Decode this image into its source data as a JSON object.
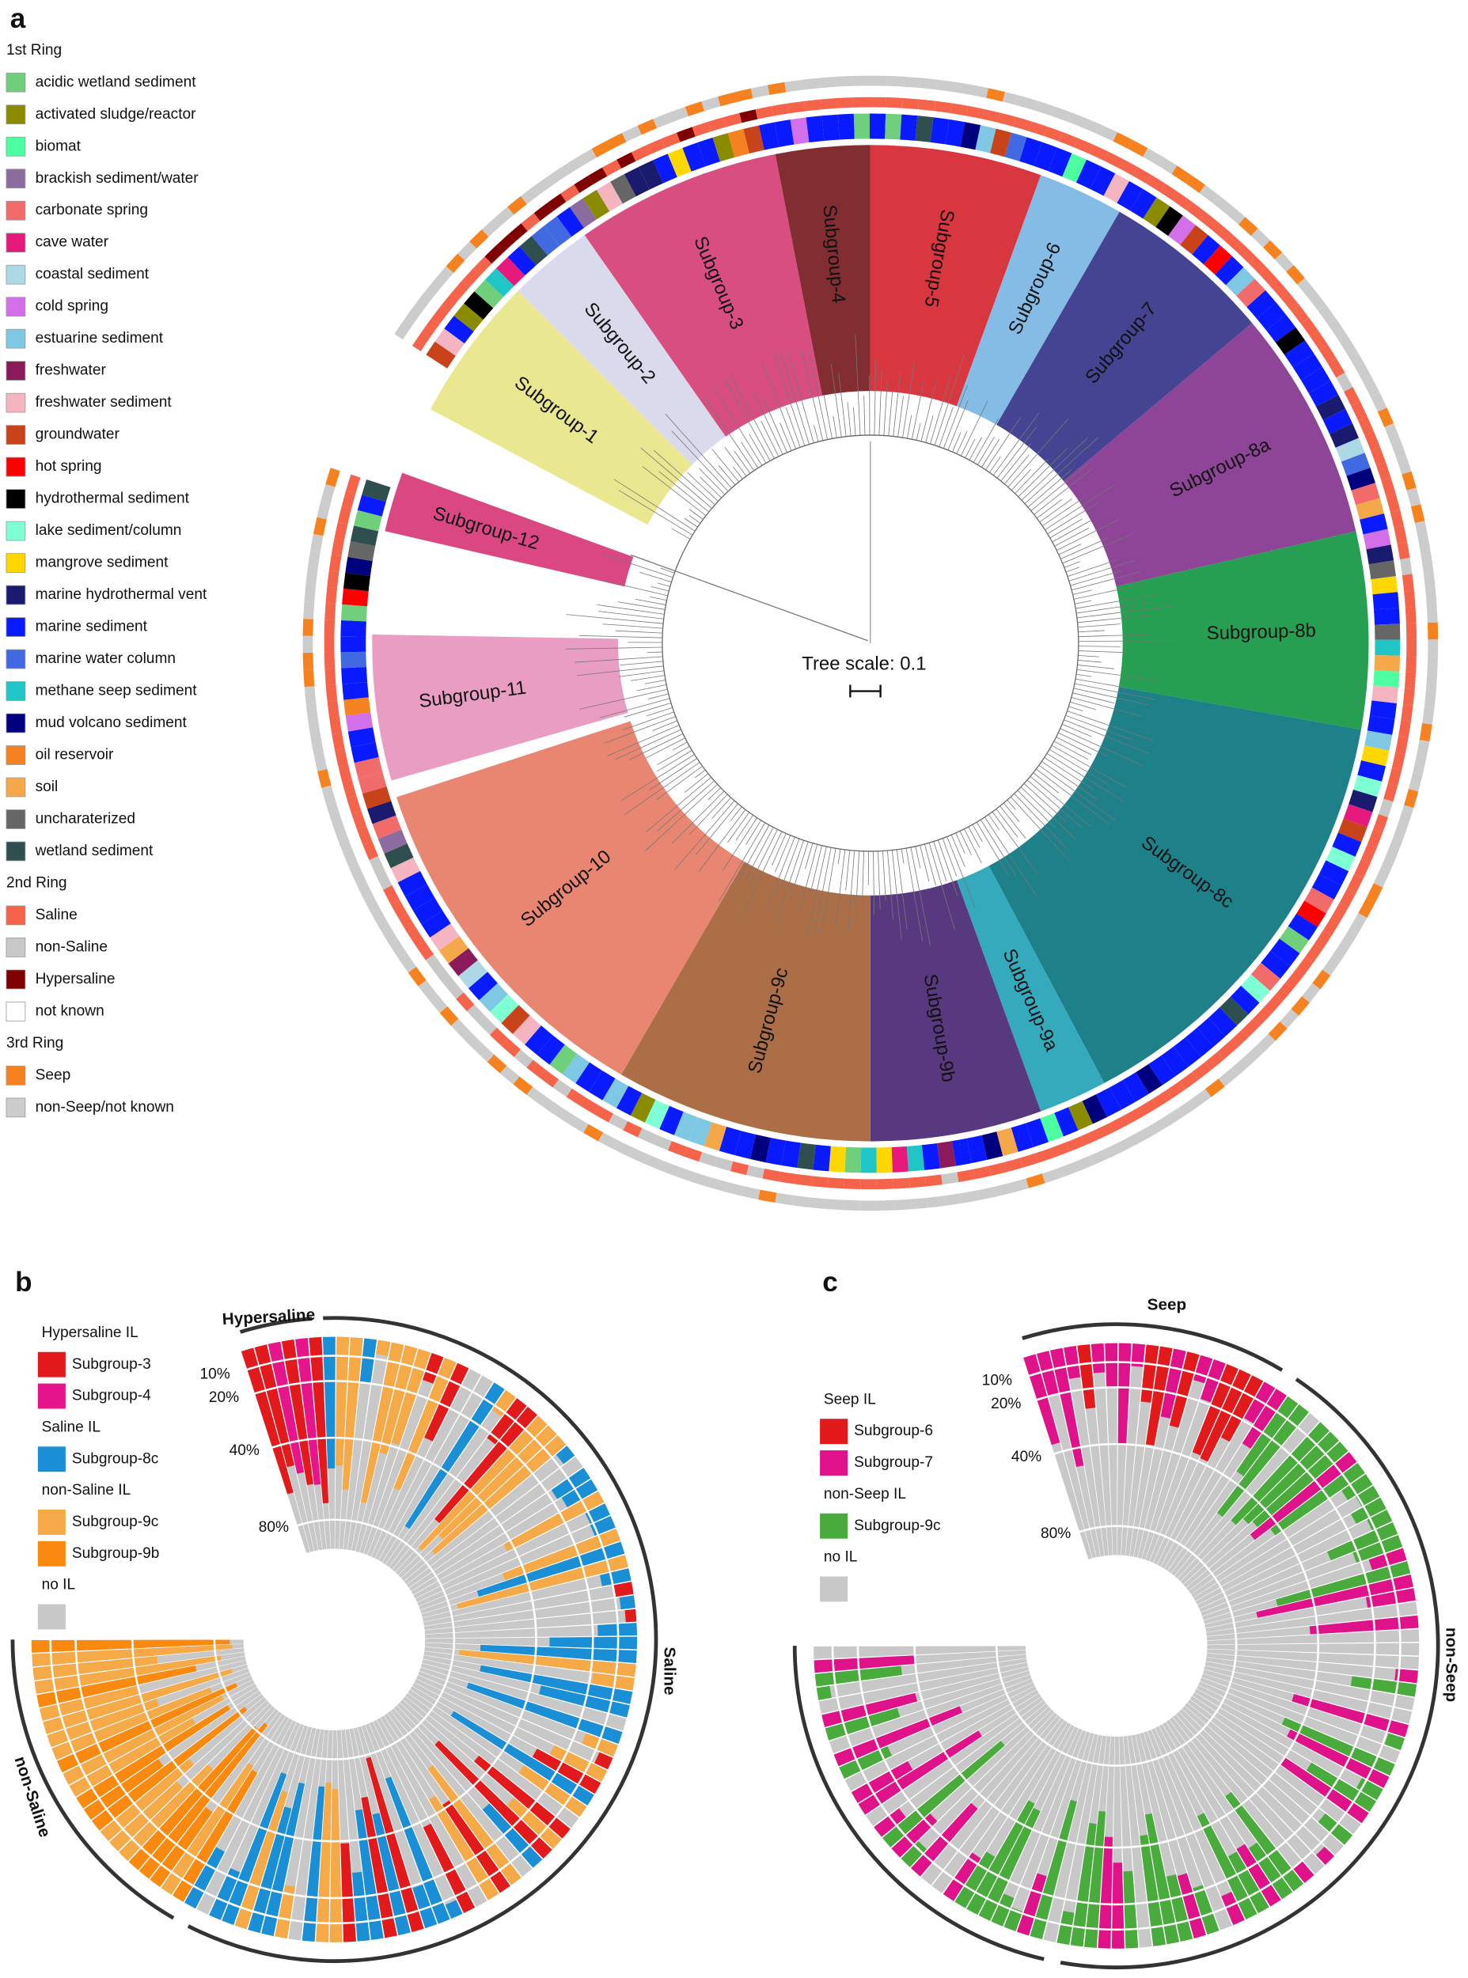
{
  "panel_a": {
    "label": "a",
    "legend": [
      {
        "title": "1st Ring",
        "items": [
          {
            "name": "acidic wetland sediment",
            "color": "#6fcf7a"
          },
          {
            "name": "activated sludge/reactor",
            "color": "#8b8b00"
          },
          {
            "name": "biomat",
            "color": "#4dffa0"
          },
          {
            "name": "brackish sediment/water",
            "color": "#8c6b9e"
          },
          {
            "name": "carbonate spring",
            "color": "#f26b6b"
          },
          {
            "name": "cave water",
            "color": "#e8197d"
          },
          {
            "name": "coastal sediment",
            "color": "#add8e6"
          },
          {
            "name": "cold spring",
            "color": "#d36fe8"
          },
          {
            "name": "estuarine sediment",
            "color": "#7ec8e3"
          },
          {
            "name": "freshwater",
            "color": "#8b1a5a"
          },
          {
            "name": "freshwater sediment",
            "color": "#f5b5c0"
          },
          {
            "name": "groundwater",
            "color": "#c8421a"
          },
          {
            "name": "hot spring",
            "color": "#ff0000"
          },
          {
            "name": "hydrothermal sediment",
            "color": "#000000"
          },
          {
            "name": "lake sediment/column",
            "color": "#7fffd4"
          },
          {
            "name": "mangrove sediment",
            "color": "#ffd700"
          },
          {
            "name": "marine hydrothermal vent",
            "color": "#1a1a6e"
          },
          {
            "name": "marine sediment",
            "color": "#0a1aff"
          },
          {
            "name": "marine water column",
            "color": "#4169e1"
          },
          {
            "name": "methane seep sediment",
            "color": "#20c6c6"
          },
          {
            "name": "mud volcano sediment",
            "color": "#00007f"
          },
          {
            "name": "oil reservoir",
            "color": "#f58220"
          },
          {
            "name": "soil",
            "color": "#f5a84a"
          },
          {
            "name": "uncharaterized",
            "color": "#666666"
          },
          {
            "name": "wetland sediment",
            "color": "#2f4f4f"
          }
        ]
      },
      {
        "title": "2nd Ring",
        "items": [
          {
            "name": "Saline",
            "color": "#f4634a"
          },
          {
            "name": "non-Saline",
            "color": "#c8c8c8"
          },
          {
            "name": "Hypersaline",
            "color": "#7f0000"
          },
          {
            "name": "not known",
            "color": "#ffffff"
          }
        ]
      },
      {
        "title": "3rd Ring",
        "items": [
          {
            "name": "Seep",
            "color": "#f5821f"
          },
          {
            "name": "non-Seep/not known",
            "color": "#cccccc"
          }
        ]
      }
    ],
    "subgroups": [
      {
        "name": "Subgroup-1",
        "color": "#e8e68a"
      },
      {
        "name": "Subgroup-2",
        "color": "#d8d8ec"
      },
      {
        "name": "Subgroup-3",
        "color": "#d6457a"
      },
      {
        "name": "Subgroup-4",
        "color": "#7a2226"
      },
      {
        "name": "Subgroup-5",
        "color": "#d62c36"
      },
      {
        "name": "Subgroup-6",
        "color": "#7db8e4"
      },
      {
        "name": "Subgroup-7",
        "color": "#3b3a8d"
      },
      {
        "name": "Subgroup-8a",
        "color": "#883a91"
      },
      {
        "name": "Subgroup-8b",
        "color": "#1a9a4a"
      },
      {
        "name": "Subgroup-8c",
        "color": "#127a84"
      },
      {
        "name": "Subgroup-9a",
        "color": "#2aa5b8"
      },
      {
        "name": "Subgroup-9b",
        "color": "#4f2e78"
      },
      {
        "name": "Subgroup-9c",
        "color": "#a8663c"
      },
      {
        "name": "Subgroup-10",
        "color": "#e8806a"
      },
      {
        "name": "Subgroup-11",
        "color": "#e898c0"
      },
      {
        "name": "Subgroup-12",
        "color": "#d93d7c"
      }
    ],
    "tree_scale": "Tree scale: 0.1"
  },
  "panel_b": {
    "label": "b",
    "legend": [
      {
        "title": "Hypersaline IL",
        "items": [
          {
            "name": "Subgroup-3",
            "color": "#e31a1c"
          },
          {
            "name": "Subgroup-4",
            "color": "#e7158c"
          }
        ]
      },
      {
        "title": "Saline IL",
        "items": [
          {
            "name": "Subgroup-8c",
            "color": "#1a8fd6"
          }
        ]
      },
      {
        "title": "non-Saline IL",
        "items": [
          {
            "name": "Subgroup-9c",
            "color": "#f5a947"
          },
          {
            "name": "Subgroup-9b",
            "color": "#f98a0f"
          }
        ]
      },
      {
        "title": "no IL",
        "items": [
          {
            "color": "#c8c8c8"
          }
        ]
      }
    ],
    "radial_ticks": [
      "10%",
      "20%",
      "40%",
      "80%"
    ],
    "arcs": [
      "Hypersaline",
      "Saline",
      "non-Saline"
    ]
  },
  "panel_c": {
    "label": "c",
    "legend": [
      {
        "title": "Seep IL",
        "items": [
          {
            "name": "Subgroup-6",
            "color": "#e31a1c"
          },
          {
            "name": "Subgroup-7",
            "color": "#e0128a"
          }
        ]
      },
      {
        "title": "non-Seep IL",
        "items": [
          {
            "name": "Subgroup-9c",
            "color": "#4aab3d"
          }
        ]
      },
      {
        "title": "no IL",
        "items": [
          {
            "color": "#c8c8c8"
          }
        ]
      }
    ],
    "radial_ticks": [
      "10%",
      "20%",
      "40%",
      "80%"
    ],
    "arcs": [
      "Seep",
      "non-Seep"
    ]
  }
}
